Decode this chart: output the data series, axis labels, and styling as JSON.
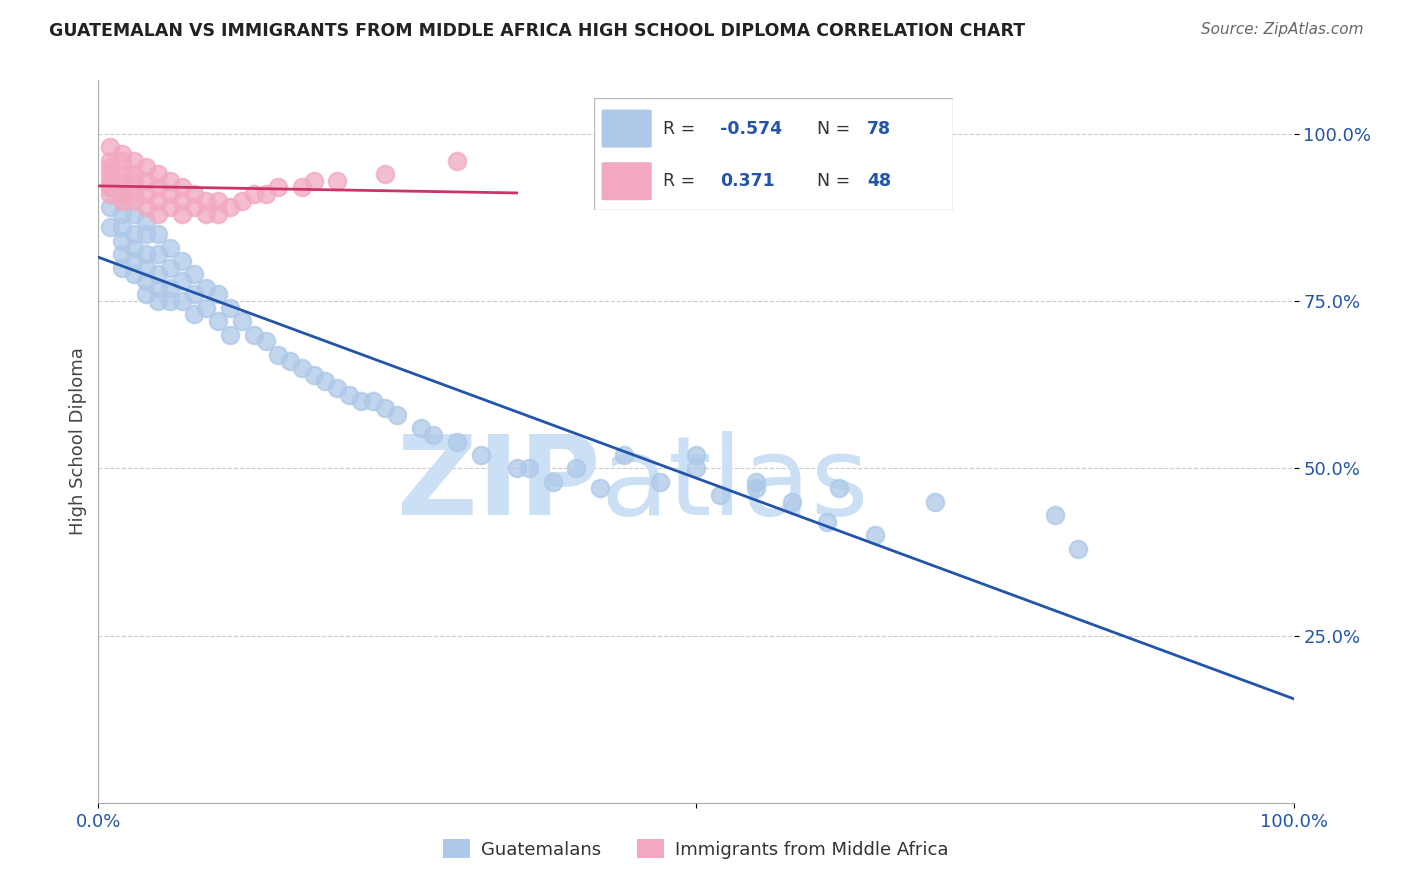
{
  "title": "GUATEMALAN VS IMMIGRANTS FROM MIDDLE AFRICA HIGH SCHOOL DIPLOMA CORRELATION CHART",
  "source": "Source: ZipAtlas.com",
  "ylabel": "High School Diploma",
  "blue_R": -0.574,
  "blue_N": 78,
  "pink_R": 0.371,
  "pink_N": 48,
  "blue_color": "#adc8e8",
  "blue_line_color": "#2255aa",
  "pink_color": "#f2a8c0",
  "pink_line_color": "#cc3366",
  "background_color": "#ffffff",
  "watermark_color": "#cce0f5",
  "legend_label_blue": "Guatemalans",
  "legend_label_pink": "Immigrants from Middle Africa",
  "blue_x": [
    0.01,
    0.01,
    0.01,
    0.02,
    0.02,
    0.02,
    0.02,
    0.02,
    0.02,
    0.03,
    0.03,
    0.03,
    0.03,
    0.03,
    0.04,
    0.04,
    0.04,
    0.04,
    0.04,
    0.04,
    0.05,
    0.05,
    0.05,
    0.05,
    0.05,
    0.06,
    0.06,
    0.06,
    0.06,
    0.07,
    0.07,
    0.07,
    0.08,
    0.08,
    0.08,
    0.09,
    0.09,
    0.1,
    0.1,
    0.11,
    0.11,
    0.12,
    0.13,
    0.14,
    0.15,
    0.16,
    0.17,
    0.18,
    0.19,
    0.2,
    0.21,
    0.22,
    0.23,
    0.24,
    0.25,
    0.27,
    0.28,
    0.3,
    0.32,
    0.35,
    0.36,
    0.38,
    0.4,
    0.42,
    0.44,
    0.47,
    0.5,
    0.52,
    0.55,
    0.58,
    0.61,
    0.65,
    0.5,
    0.55,
    0.62,
    0.7,
    0.8,
    0.82
  ],
  "blue_y": [
    0.92,
    0.89,
    0.86,
    0.91,
    0.88,
    0.86,
    0.84,
    0.82,
    0.8,
    0.88,
    0.85,
    0.83,
    0.81,
    0.79,
    0.87,
    0.85,
    0.82,
    0.8,
    0.78,
    0.76,
    0.85,
    0.82,
    0.79,
    0.77,
    0.75,
    0.83,
    0.8,
    0.77,
    0.75,
    0.81,
    0.78,
    0.75,
    0.79,
    0.76,
    0.73,
    0.77,
    0.74,
    0.76,
    0.72,
    0.74,
    0.7,
    0.72,
    0.7,
    0.69,
    0.67,
    0.66,
    0.65,
    0.64,
    0.63,
    0.62,
    0.61,
    0.6,
    0.6,
    0.59,
    0.58,
    0.56,
    0.55,
    0.54,
    0.52,
    0.5,
    0.5,
    0.48,
    0.5,
    0.47,
    0.52,
    0.48,
    0.5,
    0.46,
    0.47,
    0.45,
    0.42,
    0.4,
    0.52,
    0.48,
    0.47,
    0.45,
    0.43,
    0.38
  ],
  "pink_x": [
    0.01,
    0.01,
    0.01,
    0.01,
    0.01,
    0.01,
    0.01,
    0.02,
    0.02,
    0.02,
    0.02,
    0.02,
    0.02,
    0.03,
    0.03,
    0.03,
    0.03,
    0.03,
    0.04,
    0.04,
    0.04,
    0.04,
    0.05,
    0.05,
    0.05,
    0.05,
    0.06,
    0.06,
    0.06,
    0.07,
    0.07,
    0.07,
    0.08,
    0.08,
    0.09,
    0.09,
    0.1,
    0.1,
    0.11,
    0.12,
    0.13,
    0.14,
    0.15,
    0.17,
    0.18,
    0.2,
    0.24,
    0.3
  ],
  "pink_y": [
    0.98,
    0.96,
    0.95,
    0.94,
    0.93,
    0.92,
    0.91,
    0.97,
    0.96,
    0.94,
    0.93,
    0.91,
    0.9,
    0.96,
    0.94,
    0.93,
    0.91,
    0.9,
    0.95,
    0.93,
    0.91,
    0.89,
    0.94,
    0.92,
    0.9,
    0.88,
    0.93,
    0.91,
    0.89,
    0.92,
    0.9,
    0.88,
    0.91,
    0.89,
    0.9,
    0.88,
    0.9,
    0.88,
    0.89,
    0.9,
    0.91,
    0.91,
    0.92,
    0.92,
    0.93,
    0.93,
    0.94,
    0.96
  ]
}
